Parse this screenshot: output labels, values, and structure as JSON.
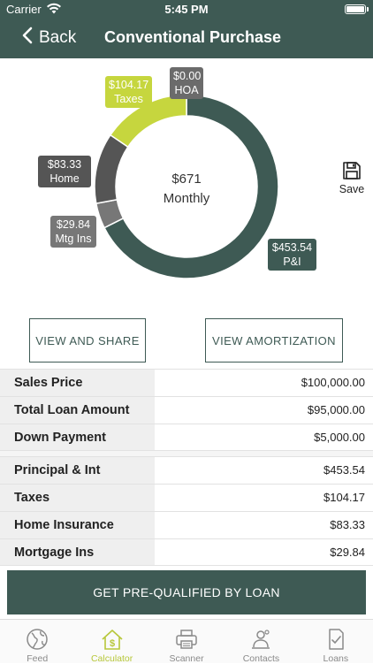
{
  "status_bar": {
    "carrier": "Carrier",
    "time": "5:45 PM"
  },
  "nav": {
    "back_label": "Back",
    "title": "Conventional Purchase"
  },
  "chart_data": {
    "type": "pie",
    "style": "donut",
    "center": {
      "amount": "$671",
      "label": "Monthly"
    },
    "slices": [
      {
        "label": "P&I",
        "value": 453.54,
        "value_text": "$453.54",
        "color": "#3e5a54"
      },
      {
        "label": "Mtg Ins",
        "value": 29.84,
        "value_text": "$29.84",
        "color": "#777777"
      },
      {
        "label": "Home Ins",
        "value": 83.33,
        "value_text": "$83.33",
        "color": "#555555"
      },
      {
        "label": "Taxes",
        "value": 104.17,
        "value_text": "$104.17",
        "color": "#c6d63e"
      },
      {
        "label": "HOA",
        "value": 0.0,
        "value_text": "$0.00",
        "color": "#6b6b6b"
      }
    ]
  },
  "save": {
    "label": "Save",
    "icon": "floppy-disk-icon"
  },
  "buttons": {
    "share": "VIEW AND SHARE",
    "amortization": "VIEW AMORTIZATION"
  },
  "loan_summary": [
    {
      "key": "Sales Price",
      "value": "$100,000.00"
    },
    {
      "key": "Total Loan Amount",
      "value": "$95,000.00"
    },
    {
      "key": "Down Payment",
      "value": "$5,000.00"
    }
  ],
  "payment_breakdown": [
    {
      "key": "Principal & Int",
      "value": "$453.54"
    },
    {
      "key": "Taxes",
      "value": "$104.17"
    },
    {
      "key": "Home Insurance",
      "value": "$83.33"
    },
    {
      "key": "Mortgage Ins",
      "value": "$29.84"
    }
  ],
  "cta_label": "GET PRE-QUALIFIED BY LOAN",
  "tabs": [
    {
      "label": "Feed",
      "icon": "globe-icon"
    },
    {
      "label": "Calculator",
      "icon": "house-dollar-icon",
      "active": true
    },
    {
      "label": "Scanner",
      "icon": "printer-icon"
    },
    {
      "label": "Contacts",
      "icon": "contact-person-icon"
    },
    {
      "label": "Loans",
      "icon": "document-check-icon"
    }
  ],
  "colors": {
    "brand": "#3e5a54",
    "accent": "#c6d63e"
  }
}
